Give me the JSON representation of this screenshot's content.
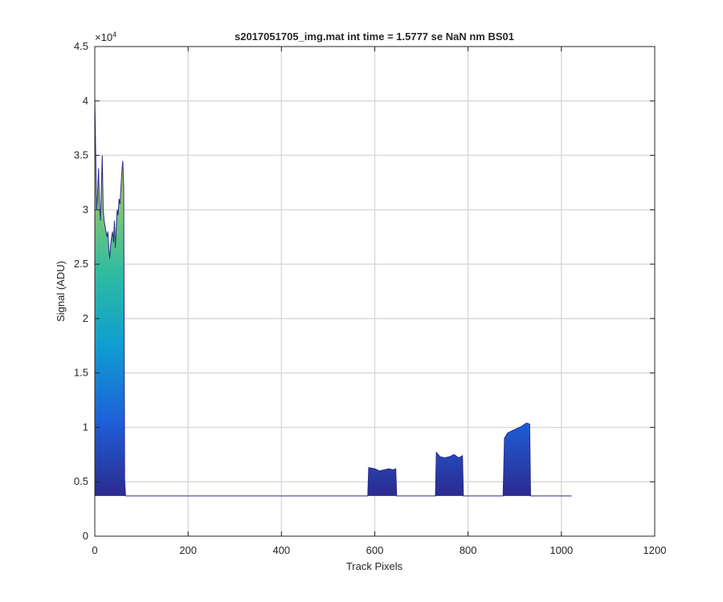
{
  "chart_data": {
    "type": "area",
    "title": "s2017051705_img.mat int time = 1.5777 se  NaN nm BS01",
    "xlabel": "Track Pixels",
    "ylabel": "Signal (ADU)",
    "y_exponent_label": "×10",
    "y_exponent_power": "4",
    "xlim": [
      0,
      1200
    ],
    "ylim": [
      0,
      45000
    ],
    "x_ticks": [
      0,
      200,
      400,
      600,
      800,
      1000,
      1200
    ],
    "x_tick_labels": [
      "0",
      "200",
      "400",
      "600",
      "800",
      "1000",
      "1200"
    ],
    "y_ticks": [
      0,
      5000,
      10000,
      15000,
      20000,
      25000,
      30000,
      35000,
      40000,
      45000
    ],
    "y_tick_labels": [
      "0",
      "0.5",
      "1",
      "1.5",
      "2",
      "2.5",
      "3",
      "3.5",
      "4",
      "4.5"
    ],
    "grid": true,
    "colormap": [
      "#2c2a8f",
      "#1e5fd8",
      "#0f9dd1",
      "#2fbca0",
      "#8dc86a",
      "#e4bd45"
    ],
    "baseline": 3700,
    "series": [
      {
        "x": [
          0,
          2,
          4,
          6,
          8,
          10,
          12,
          14,
          16,
          18,
          20,
          22,
          24,
          26,
          28,
          30,
          32,
          34,
          36,
          38,
          40,
          42,
          44,
          46,
          48,
          50,
          52,
          54,
          56,
          58,
          60,
          62,
          64,
          66,
          80,
          200,
          400,
          585,
          587,
          600,
          610,
          620,
          630,
          640,
          645,
          647,
          700,
          730,
          732,
          740,
          750,
          760,
          770,
          780,
          788,
          790,
          800,
          875,
          878,
          885,
          895,
          905,
          915,
          925,
          932,
          934,
          1000,
          1022
        ],
        "y": [
          40500,
          35000,
          30000,
          31500,
          33800,
          30500,
          29000,
          32000,
          35000,
          30000,
          29000,
          28500,
          28000,
          27500,
          28000,
          26500,
          25500,
          26800,
          27500,
          28000,
          27000,
          29000,
          26500,
          28500,
          30000,
          29500,
          31000,
          30500,
          32000,
          33500,
          34500,
          32000,
          5200,
          3700,
          3700,
          3700,
          3700,
          3700,
          6300,
          6200,
          6000,
          6100,
          6200,
          6100,
          6200,
          3700,
          3700,
          3700,
          7700,
          7300,
          7200,
          7300,
          7500,
          7200,
          7400,
          3700,
          3700,
          3700,
          9000,
          9500,
          9700,
          9900,
          10100,
          10400,
          10300,
          3700,
          3700,
          3700
        ]
      }
    ]
  }
}
